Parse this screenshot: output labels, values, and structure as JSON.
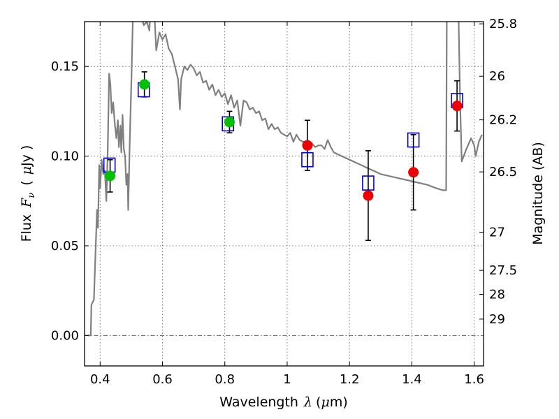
{
  "chart_data": {
    "type": "scatter",
    "xlabel": "Wavelength",
    "xlabel_symbol": "λ",
    "xlabel_unit_open": "(",
    "xlabel_unit_mu": "μ",
    "xlabel_unit_rest": "m)",
    "ylabel_left_text": "Flux",
    "ylabel_left_symbol": "F",
    "ylabel_left_sub": "ν",
    "ylabel_left_unit_open": "(",
    "ylabel_left_unit_mu": "μ",
    "ylabel_left_unit_rest": "Jy )",
    "ylabel_right": "Magnitude (AB)",
    "xlim": [
      0.35,
      1.63
    ],
    "ylim": [
      -0.017,
      0.175
    ],
    "grid": true,
    "x_ticks": [
      {
        "value": 0.4,
        "label": "0.4"
      },
      {
        "value": 0.6,
        "label": "0.6"
      },
      {
        "value": 0.8,
        "label": "0.8"
      },
      {
        "value": 1.0,
        "label": "1"
      },
      {
        "value": 1.2,
        "label": "1.2"
      },
      {
        "value": 1.4,
        "label": "1.4"
      },
      {
        "value": 1.6,
        "label": "1.6"
      }
    ],
    "y_ticks_left": [
      {
        "value": 0.0,
        "label": "0.00"
      },
      {
        "value": 0.05,
        "label": "0.05"
      },
      {
        "value": 0.1,
        "label": "0.10"
      },
      {
        "value": 0.15,
        "label": "0.15"
      }
    ],
    "y_ticks_right": [
      {
        "value": 25.8,
        "label": "25.8"
      },
      {
        "value": 26.0,
        "label": "26"
      },
      {
        "value": 26.2,
        "label": "26.2"
      },
      {
        "value": 26.5,
        "label": "26.5"
      },
      {
        "value": 27.0,
        "label": "27"
      },
      {
        "value": 27.5,
        "label": "27.5"
      },
      {
        "value": 28.0,
        "label": "28"
      },
      {
        "value": 29.0,
        "label": "29"
      }
    ],
    "zero_line": 0.0,
    "model_spectrum": [
      [
        0.36,
        0.0
      ],
      [
        0.37,
        0.0
      ],
      [
        0.372,
        0.017
      ],
      [
        0.38,
        0.02
      ],
      [
        0.385,
        0.045
      ],
      [
        0.39,
        0.07
      ],
      [
        0.393,
        0.06
      ],
      [
        0.397,
        0.095
      ],
      [
        0.4,
        0.082
      ],
      [
        0.405,
        0.098
      ],
      [
        0.41,
        0.09
      ],
      [
        0.415,
        0.092
      ],
      [
        0.42,
        0.075
      ],
      [
        0.424,
        0.1
      ],
      [
        0.429,
        0.146
      ],
      [
        0.433,
        0.14
      ],
      [
        0.437,
        0.124
      ],
      [
        0.442,
        0.13
      ],
      [
        0.447,
        0.118
      ],
      [
        0.452,
        0.11
      ],
      [
        0.457,
        0.12
      ],
      [
        0.46,
        0.105
      ],
      [
        0.465,
        0.117
      ],
      [
        0.468,
        0.102
      ],
      [
        0.472,
        0.123
      ],
      [
        0.476,
        0.104
      ],
      [
        0.48,
        0.1
      ],
      [
        0.484,
        0.084
      ],
      [
        0.488,
        0.09
      ],
      [
        0.49,
        0.07
      ],
      [
        0.495,
        0.108
      ],
      [
        0.5,
        0.14
      ],
      [
        0.505,
        0.176
      ],
      [
        0.51,
        0.176
      ],
      [
        0.52,
        0.176
      ],
      [
        0.535,
        0.176
      ],
      [
        0.54,
        0.173
      ],
      [
        0.55,
        0.175
      ],
      [
        0.558,
        0.17
      ],
      [
        0.56,
        0.176
      ],
      [
        0.575,
        0.176
      ],
      [
        0.58,
        0.159
      ],
      [
        0.59,
        0.169
      ],
      [
        0.6,
        0.165
      ],
      [
        0.61,
        0.168
      ],
      [
        0.62,
        0.16
      ],
      [
        0.63,
        0.157
      ],
      [
        0.64,
        0.15
      ],
      [
        0.65,
        0.143
      ],
      [
        0.656,
        0.126
      ],
      [
        0.66,
        0.143
      ],
      [
        0.67,
        0.15
      ],
      [
        0.68,
        0.148
      ],
      [
        0.69,
        0.151
      ],
      [
        0.7,
        0.149
      ],
      [
        0.71,
        0.145
      ],
      [
        0.72,
        0.147
      ],
      [
        0.73,
        0.141
      ],
      [
        0.74,
        0.142
      ],
      [
        0.75,
        0.137
      ],
      [
        0.76,
        0.14
      ],
      [
        0.77,
        0.134
      ],
      [
        0.78,
        0.137
      ],
      [
        0.79,
        0.133
      ],
      [
        0.8,
        0.135
      ],
      [
        0.81,
        0.129
      ],
      [
        0.82,
        0.134
      ],
      [
        0.83,
        0.127
      ],
      [
        0.84,
        0.131
      ],
      [
        0.85,
        0.117
      ],
      [
        0.86,
        0.131
      ],
      [
        0.87,
        0.13
      ],
      [
        0.88,
        0.126
      ],
      [
        0.89,
        0.127
      ],
      [
        0.9,
        0.124
      ],
      [
        0.91,
        0.125
      ],
      [
        0.92,
        0.12
      ],
      [
        0.93,
        0.121
      ],
      [
        0.94,
        0.115
      ],
      [
        0.95,
        0.118
      ],
      [
        0.96,
        0.115
      ],
      [
        0.97,
        0.116
      ],
      [
        0.98,
        0.113
      ],
      [
        0.99,
        0.112
      ],
      [
        1.0,
        0.111
      ],
      [
        1.01,
        0.113
      ],
      [
        1.02,
        0.108
      ],
      [
        1.03,
        0.112
      ],
      [
        1.04,
        0.109
      ],
      [
        1.05,
        0.108
      ],
      [
        1.06,
        0.108
      ],
      [
        1.07,
        0.106
      ],
      [
        1.08,
        0.107
      ],
      [
        1.09,
        0.105
      ],
      [
        1.1,
        0.106
      ],
      [
        1.11,
        0.106
      ],
      [
        1.12,
        0.104
      ],
      [
        1.13,
        0.109
      ],
      [
        1.14,
        0.105
      ],
      [
        1.15,
        0.102
      ],
      [
        1.2,
        0.098
      ],
      [
        1.25,
        0.094
      ],
      [
        1.3,
        0.09
      ],
      [
        1.35,
        0.088
      ],
      [
        1.4,
        0.086
      ],
      [
        1.45,
        0.084
      ],
      [
        1.48,
        0.082
      ],
      [
        1.5,
        0.081
      ],
      [
        1.51,
        0.081
      ],
      [
        1.512,
        0.176
      ],
      [
        1.55,
        0.176
      ],
      [
        1.555,
        0.13
      ],
      [
        1.56,
        0.097
      ],
      [
        1.575,
        0.104
      ],
      [
        1.59,
        0.11
      ],
      [
        1.6,
        0.106
      ],
      [
        1.605,
        0.1
      ],
      [
        1.615,
        0.108
      ],
      [
        1.625,
        0.112
      ]
    ],
    "model_points": [
      {
        "x": 0.43,
        "y": 0.095
      },
      {
        "x": 0.54,
        "y": 0.137
      },
      {
        "x": 0.81,
        "y": 0.118
      },
      {
        "x": 1.065,
        "y": 0.098
      },
      {
        "x": 1.26,
        "y": 0.085
      },
      {
        "x": 1.405,
        "y": 0.109
      },
      {
        "x": 1.545,
        "y": 0.131
      }
    ],
    "observed_optical": [
      {
        "x": 0.432,
        "y": 0.089,
        "err": 0.009
      },
      {
        "x": 0.542,
        "y": 0.14,
        "err": 0.007
      },
      {
        "x": 0.815,
        "y": 0.119,
        "err": 0.006
      }
    ],
    "observed_nir": [
      {
        "x": 1.065,
        "y": 0.106,
        "err": 0.014
      },
      {
        "x": 1.26,
        "y": 0.078,
        "err": 0.025
      },
      {
        "x": 1.405,
        "y": 0.091,
        "err": 0.021
      },
      {
        "x": 1.545,
        "y": 0.128,
        "err": 0.014
      }
    ],
    "colors": {
      "model_line": "#808080",
      "model_points": "#0000cc",
      "optical": "#00c000",
      "nir": "#ee0000",
      "errorbar": "#000000",
      "zero_line": "#555555"
    }
  }
}
